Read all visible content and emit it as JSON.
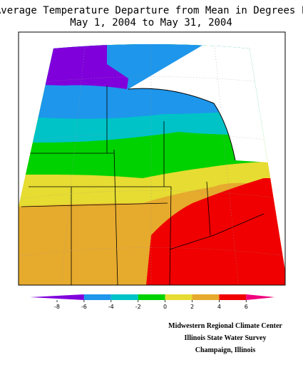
{
  "title": [
    "Average Temperature Departure from Mean in Degrees F",
    "May 1, 2004 to May 31, 2004"
  ],
  "legend": {
    "colors": [
      "#8000dc",
      "#1e96eb",
      "#00c3c8",
      "#00d200",
      "#e6dc32",
      "#e6aa2d",
      "#f00000",
      "#f0007d"
    ],
    "ticks": [
      -8,
      -6,
      -4,
      -2,
      0,
      2,
      4,
      6
    ]
  },
  "credits": [
    "Midwestern Regional Climate Center",
    "Illinois State Water Survey",
    "Champaign, Illinois"
  ]
}
